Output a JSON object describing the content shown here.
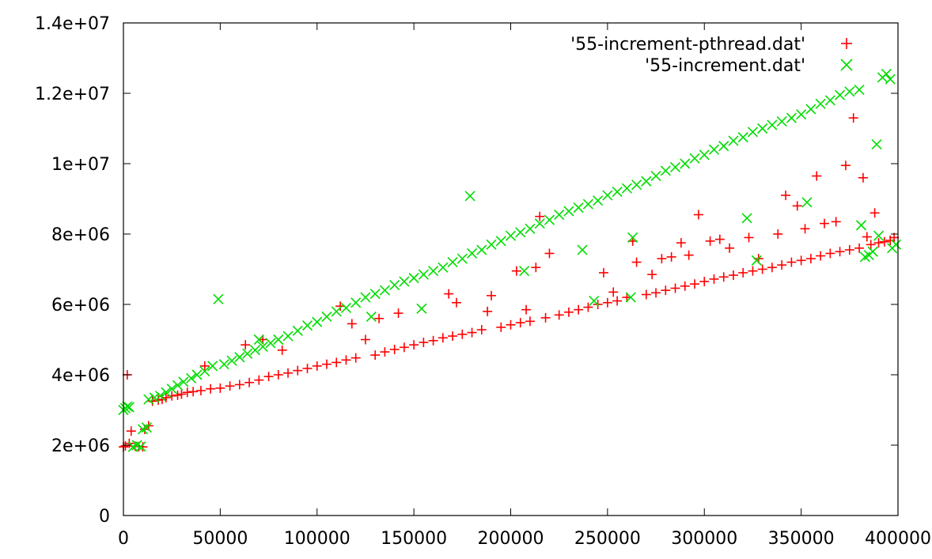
{
  "chart_data": {
    "type": "scatter",
    "title": "",
    "xlabel": "",
    "ylabel": "",
    "xlim": [
      0,
      400000
    ],
    "ylim": [
      0,
      14000000
    ],
    "grid": false,
    "legend_position": "top-right",
    "x_ticks": [
      {
        "value": 0,
        "label": "0"
      },
      {
        "value": 50000,
        "label": "50000"
      },
      {
        "value": 100000,
        "label": "100000"
      },
      {
        "value": 150000,
        "label": "150000"
      },
      {
        "value": 200000,
        "label": "200000"
      },
      {
        "value": 250000,
        "label": "250000"
      },
      {
        "value": 300000,
        "label": "300000"
      },
      {
        "value": 350000,
        "label": "350000"
      },
      {
        "value": 400000,
        "label": "400000"
      }
    ],
    "y_ticks": [
      {
        "value": 0,
        "label": "0"
      },
      {
        "value": 2000000,
        "label": "2e+06"
      },
      {
        "value": 4000000,
        "label": "4e+06"
      },
      {
        "value": 6000000,
        "label": "6e+06"
      },
      {
        "value": 8000000,
        "label": "8e+06"
      },
      {
        "value": 10000000,
        "label": "1e+07"
      },
      {
        "value": 12000000,
        "label": "1.2e+07"
      },
      {
        "value": 14000000,
        "label": "1.4e+07"
      }
    ],
    "series": [
      {
        "name": "'55-increment-pthread.dat'",
        "marker": "plus",
        "color": "#ff0000",
        "points": [
          [
            0,
            1950000
          ],
          [
            1000,
            1980000
          ],
          [
            2000,
            4000000
          ],
          [
            3000,
            2050000
          ],
          [
            4000,
            2400000
          ],
          [
            6000,
            1970000
          ],
          [
            8000,
            1960000
          ],
          [
            10000,
            1950000
          ],
          [
            11000,
            2450000
          ],
          [
            13000,
            2550000
          ],
          [
            15000,
            3250000
          ],
          [
            18000,
            3280000
          ],
          [
            20000,
            3300000
          ],
          [
            22000,
            3350000
          ],
          [
            25000,
            3400000
          ],
          [
            28000,
            3420000
          ],
          [
            30000,
            3450000
          ],
          [
            33000,
            3500000
          ],
          [
            36000,
            3520000
          ],
          [
            40000,
            3550000
          ],
          [
            42000,
            4250000
          ],
          [
            45000,
            3600000
          ],
          [
            50000,
            3620000
          ],
          [
            55000,
            3680000
          ],
          [
            60000,
            3720000
          ],
          [
            63000,
            4850000
          ],
          [
            65000,
            3780000
          ],
          [
            70000,
            3850000
          ],
          [
            72000,
            5000000
          ],
          [
            75000,
            3950000
          ],
          [
            80000,
            4000000
          ],
          [
            82000,
            4700000
          ],
          [
            85000,
            4050000
          ],
          [
            90000,
            4120000
          ],
          [
            95000,
            4180000
          ],
          [
            100000,
            4250000
          ],
          [
            105000,
            4300000
          ],
          [
            110000,
            4350000
          ],
          [
            112000,
            5950000
          ],
          [
            115000,
            4420000
          ],
          [
            118000,
            5450000
          ],
          [
            120000,
            4480000
          ],
          [
            125000,
            5000000
          ],
          [
            130000,
            4560000
          ],
          [
            132000,
            5600000
          ],
          [
            135000,
            4650000
          ],
          [
            140000,
            4720000
          ],
          [
            142000,
            5750000
          ],
          [
            145000,
            4780000
          ],
          [
            150000,
            4850000
          ],
          [
            155000,
            4920000
          ],
          [
            160000,
            4970000
          ],
          [
            165000,
            5050000
          ],
          [
            168000,
            6300000
          ],
          [
            170000,
            5100000
          ],
          [
            172000,
            6050000
          ],
          [
            175000,
            5150000
          ],
          [
            180000,
            5200000
          ],
          [
            185000,
            5280000
          ],
          [
            188000,
            5800000
          ],
          [
            190000,
            6250000
          ],
          [
            195000,
            5350000
          ],
          [
            200000,
            5420000
          ],
          [
            203000,
            6950000
          ],
          [
            205000,
            5480000
          ],
          [
            208000,
            5850000
          ],
          [
            210000,
            5520000
          ],
          [
            213000,
            7050000
          ],
          [
            215000,
            8500000
          ],
          [
            218000,
            5620000
          ],
          [
            220000,
            7450000
          ],
          [
            225000,
            5700000
          ],
          [
            230000,
            5780000
          ],
          [
            235000,
            5850000
          ],
          [
            240000,
            5920000
          ],
          [
            245000,
            6000000
          ],
          [
            248000,
            6900000
          ],
          [
            250000,
            6050000
          ],
          [
            253000,
            6350000
          ],
          [
            255000,
            6100000
          ],
          [
            260000,
            6200000
          ],
          [
            263000,
            7800000
          ],
          [
            265000,
            7200000
          ],
          [
            270000,
            6280000
          ],
          [
            273000,
            6850000
          ],
          [
            275000,
            6330000
          ],
          [
            278000,
            7300000
          ],
          [
            280000,
            6400000
          ],
          [
            283000,
            7350000
          ],
          [
            285000,
            6460000
          ],
          [
            288000,
            7750000
          ],
          [
            290000,
            6520000
          ],
          [
            292000,
            7400000
          ],
          [
            295000,
            6580000
          ],
          [
            297000,
            8550000
          ],
          [
            300000,
            6650000
          ],
          [
            303000,
            7800000
          ],
          [
            305000,
            6720000
          ],
          [
            308000,
            7850000
          ],
          [
            310000,
            6780000
          ],
          [
            313000,
            7600000
          ],
          [
            315000,
            6830000
          ],
          [
            320000,
            6900000
          ],
          [
            323000,
            7900000
          ],
          [
            325000,
            6950000
          ],
          [
            328000,
            7300000
          ],
          [
            330000,
            7000000
          ],
          [
            335000,
            7050000
          ],
          [
            338000,
            8000000
          ],
          [
            340000,
            7120000
          ],
          [
            342000,
            9100000
          ],
          [
            345000,
            7200000
          ],
          [
            348000,
            8800000
          ],
          [
            350000,
            7250000
          ],
          [
            352000,
            8150000
          ],
          [
            355000,
            7300000
          ],
          [
            358000,
            9650000
          ],
          [
            360000,
            7380000
          ],
          [
            362000,
            8300000
          ],
          [
            365000,
            7450000
          ],
          [
            368000,
            8350000
          ],
          [
            370000,
            7500000
          ],
          [
            373000,
            9950000
          ],
          [
            375000,
            7550000
          ],
          [
            377000,
            11300000
          ],
          [
            380000,
            7600000
          ],
          [
            382000,
            9600000
          ],
          [
            384000,
            7920000
          ],
          [
            386000,
            7700000
          ],
          [
            388000,
            8600000
          ],
          [
            390000,
            7750000
          ],
          [
            393000,
            7780000
          ],
          [
            396000,
            7820000
          ],
          [
            398000,
            7900000
          ]
        ]
      },
      {
        "name": "'55-increment.dat'",
        "marker": "cross",
        "color": "#00dd00",
        "points": [
          [
            0,
            3000000
          ],
          [
            1000,
            3050000
          ],
          [
            2000,
            3100000
          ],
          [
            3000,
            3080000
          ],
          [
            5000,
            1950000
          ],
          [
            7000,
            2000000
          ],
          [
            9000,
            1960000
          ],
          [
            10000,
            2450000
          ],
          [
            12000,
            2500000
          ],
          [
            13000,
            3300000
          ],
          [
            16000,
            3350000
          ],
          [
            19000,
            3400000
          ],
          [
            22000,
            3500000
          ],
          [
            25000,
            3600000
          ],
          [
            28000,
            3700000
          ],
          [
            31000,
            3800000
          ],
          [
            35000,
            3900000
          ],
          [
            38000,
            4000000
          ],
          [
            42000,
            4100000
          ],
          [
            46000,
            4250000
          ],
          [
            49000,
            6150000
          ],
          [
            52000,
            4300000
          ],
          [
            56000,
            4400000
          ],
          [
            60000,
            4500000
          ],
          [
            64000,
            4600000
          ],
          [
            68000,
            4700000
          ],
          [
            70000,
            5000000
          ],
          [
            72000,
            4800000
          ],
          [
            76000,
            4900000
          ],
          [
            80000,
            5000000
          ],
          [
            85000,
            5100000
          ],
          [
            90000,
            5250000
          ],
          [
            95000,
            5400000
          ],
          [
            100000,
            5500000
          ],
          [
            105000,
            5650000
          ],
          [
            110000,
            5800000
          ],
          [
            115000,
            5900000
          ],
          [
            120000,
            6050000
          ],
          [
            125000,
            6200000
          ],
          [
            128000,
            5650000
          ],
          [
            130000,
            6300000
          ],
          [
            135000,
            6400000
          ],
          [
            140000,
            6550000
          ],
          [
            145000,
            6650000
          ],
          [
            150000,
            6750000
          ],
          [
            154000,
            5880000
          ],
          [
            155000,
            6850000
          ],
          [
            160000,
            6950000
          ],
          [
            165000,
            7050000
          ],
          [
            170000,
            7200000
          ],
          [
            175000,
            7300000
          ],
          [
            179000,
            9080000
          ],
          [
            180000,
            7450000
          ],
          [
            185000,
            7550000
          ],
          [
            190000,
            7700000
          ],
          [
            195000,
            7800000
          ],
          [
            200000,
            7950000
          ],
          [
            205000,
            8050000
          ],
          [
            207000,
            6950000
          ],
          [
            210000,
            8150000
          ],
          [
            215000,
            8300000
          ],
          [
            220000,
            8400000
          ],
          [
            225000,
            8550000
          ],
          [
            230000,
            8650000
          ],
          [
            235000,
            8750000
          ],
          [
            237000,
            7550000
          ],
          [
            240000,
            8850000
          ],
          [
            243000,
            6100000
          ],
          [
            245000,
            8950000
          ],
          [
            250000,
            9100000
          ],
          [
            255000,
            9200000
          ],
          [
            260000,
            9300000
          ],
          [
            262000,
            6200000
          ],
          [
            263000,
            7900000
          ],
          [
            265000,
            9400000
          ],
          [
            270000,
            9500000
          ],
          [
            275000,
            9650000
          ],
          [
            280000,
            9800000
          ],
          [
            285000,
            9900000
          ],
          [
            290000,
            10000000
          ],
          [
            295000,
            10150000
          ],
          [
            300000,
            10250000
          ],
          [
            305000,
            10400000
          ],
          [
            310000,
            10500000
          ],
          [
            315000,
            10650000
          ],
          [
            320000,
            10750000
          ],
          [
            322000,
            8450000
          ],
          [
            325000,
            10900000
          ],
          [
            327000,
            7250000
          ],
          [
            330000,
            11000000
          ],
          [
            335000,
            11100000
          ],
          [
            340000,
            11200000
          ],
          [
            345000,
            11300000
          ],
          [
            350000,
            11400000
          ],
          [
            353000,
            8900000
          ],
          [
            355000,
            11550000
          ],
          [
            360000,
            11700000
          ],
          [
            365000,
            11800000
          ],
          [
            370000,
            11950000
          ],
          [
            375000,
            12050000
          ],
          [
            380000,
            12100000
          ],
          [
            381000,
            8250000
          ],
          [
            383000,
            7350000
          ],
          [
            385000,
            7400000
          ],
          [
            387000,
            7500000
          ],
          [
            389000,
            10550000
          ],
          [
            390000,
            7950000
          ],
          [
            392000,
            12450000
          ],
          [
            394000,
            12550000
          ],
          [
            396000,
            12400000
          ],
          [
            397000,
            7600000
          ],
          [
            399000,
            7700000
          ]
        ]
      }
    ]
  }
}
